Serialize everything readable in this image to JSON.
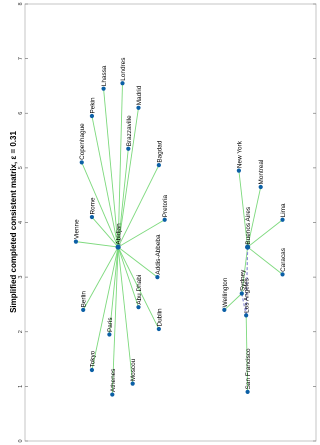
{
  "chart_data": {
    "type": "scatter",
    "title": "Simplified completed consistent matrix, ε = 0.31",
    "xlim": [
      0,
      8
    ],
    "ylim": [
      0,
      10
    ],
    "x_reversed": true,
    "x_ticks": [
      "0",
      "1",
      "2",
      "3",
      "4",
      "5",
      "6",
      "7",
      "8"
    ],
    "grid": false,
    "colors": {
      "node": "#0b5fa5",
      "edge": "#7dd97d",
      "dashed_edge": "#8a8ad4"
    },
    "hubs": [
      "Abidjan",
      "Buenos Aires"
    ],
    "points": [
      {
        "name": "Abidjan",
        "x": 3.55,
        "y": 3.2
      },
      {
        "name": "Londres",
        "x": 6.55,
        "y": 3.35
      },
      {
        "name": "Madrid",
        "x": 6.1,
        "y": 3.9
      },
      {
        "name": "Brazzaville",
        "x": 5.35,
        "y": 3.55
      },
      {
        "name": "Bagdad",
        "x": 5.05,
        "y": 4.6
      },
      {
        "name": "Pretoria",
        "x": 4.05,
        "y": 4.8
      },
      {
        "name": "Addis-Abbeba",
        "x": 3.0,
        "y": 4.55
      },
      {
        "name": "Dublin",
        "x": 2.05,
        "y": 4.6
      },
      {
        "name": "Abu Dhabi",
        "x": 2.45,
        "y": 3.9
      },
      {
        "name": "Moscou",
        "x": 1.05,
        "y": 3.7
      },
      {
        "name": "Athenes",
        "x": 0.85,
        "y": 3.0
      },
      {
        "name": "Paris",
        "x": 1.95,
        "y": 2.9
      },
      {
        "name": "Tokyo",
        "x": 1.3,
        "y": 2.3
      },
      {
        "name": "Berlin",
        "x": 2.4,
        "y": 2.0
      },
      {
        "name": "Vienne",
        "x": 3.65,
        "y": 1.75
      },
      {
        "name": "Rome",
        "x": 4.1,
        "y": 2.3
      },
      {
        "name": "Copenhague",
        "x": 5.1,
        "y": 1.95
      },
      {
        "name": "Pekin",
        "x": 5.95,
        "y": 2.3
      },
      {
        "name": "Lhassa",
        "x": 6.45,
        "y": 2.7
      },
      {
        "name": "Buenos Aires",
        "x": 3.55,
        "y": 7.65
      },
      {
        "name": "Montreal",
        "x": 4.65,
        "y": 8.1
      },
      {
        "name": "Lima",
        "x": 4.05,
        "y": 8.85
      },
      {
        "name": "Caracas",
        "x": 3.05,
        "y": 8.85
      },
      {
        "name": "New York",
        "x": 4.95,
        "y": 7.35
      },
      {
        "name": "Sydney",
        "x": 2.7,
        "y": 7.45
      },
      {
        "name": "Los Angeles",
        "x": 2.3,
        "y": 7.6
      },
      {
        "name": "San Francisco",
        "x": 0.9,
        "y": 7.65
      },
      {
        "name": "Wellington",
        "x": 2.4,
        "y": 6.85
      }
    ],
    "edges": [
      {
        "from": "Abidjan",
        "to": "Londres"
      },
      {
        "from": "Abidjan",
        "to": "Madrid"
      },
      {
        "from": "Abidjan",
        "to": "Brazzaville"
      },
      {
        "from": "Abidjan",
        "to": "Bagdad"
      },
      {
        "from": "Abidjan",
        "to": "Pretoria"
      },
      {
        "from": "Abidjan",
        "to": "Addis-Abbeba"
      },
      {
        "from": "Abidjan",
        "to": "Dublin"
      },
      {
        "from": "Abidjan",
        "to": "Abu Dhabi"
      },
      {
        "from": "Abidjan",
        "to": "Moscou"
      },
      {
        "from": "Abidjan",
        "to": "Athenes"
      },
      {
        "from": "Abidjan",
        "to": "Paris"
      },
      {
        "from": "Abidjan",
        "to": "Tokyo"
      },
      {
        "from": "Abidjan",
        "to": "Berlin"
      },
      {
        "from": "Abidjan",
        "to": "Vienne"
      },
      {
        "from": "Abidjan",
        "to": "Rome"
      },
      {
        "from": "Abidjan",
        "to": "Copenhague"
      },
      {
        "from": "Abidjan",
        "to": "Pekin"
      },
      {
        "from": "Abidjan",
        "to": "Lhassa"
      },
      {
        "from": "Buenos Aires",
        "to": "Montreal"
      },
      {
        "from": "Buenos Aires",
        "to": "Lima"
      },
      {
        "from": "Buenos Aires",
        "to": "Caracas"
      },
      {
        "from": "Buenos Aires",
        "to": "New York"
      },
      {
        "from": "Buenos Aires",
        "to": "Sydney"
      },
      {
        "from": "Sydney",
        "to": "Wellington"
      },
      {
        "from": "Los Angeles",
        "to": "San Francisco"
      },
      {
        "from": "Buenos Aires",
        "to": "Los Angeles",
        "style": "dashed"
      },
      {
        "from": "Sydney",
        "to": "Los Angeles",
        "style": "dashed"
      }
    ]
  }
}
